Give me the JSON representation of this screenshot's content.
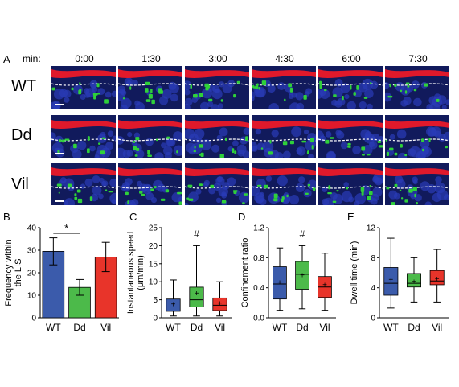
{
  "panel_a": {
    "letter": "A",
    "time_prefix": "min:",
    "times": [
      "0:00",
      "1:30",
      "3:00",
      "4:30",
      "6:00",
      "7:30"
    ],
    "rows": [
      "WT",
      "Dd",
      "Vil"
    ]
  },
  "chart_data": [
    {
      "panel": "B",
      "type": "bar",
      "ylabel": [
        "Frequency within",
        "the LIS"
      ],
      "categories": [
        "WT",
        "Dd",
        "Vil"
      ],
      "values": [
        29.5,
        13.5,
        27
      ],
      "errors": [
        6,
        3.5,
        6.5
      ],
      "colors": [
        "#3b5bab",
        "#4cba4a",
        "#e8342a"
      ],
      "ylim": [
        0,
        40
      ],
      "yticks": [
        0,
        10,
        20,
        30,
        40
      ],
      "significance": "*"
    },
    {
      "panel": "C",
      "type": "box",
      "ylabel": [
        "Instantaneous speed",
        "(μm/min)"
      ],
      "categories": [
        "WT",
        "Dd",
        "Vil"
      ],
      "colors": [
        "#3b5bab",
        "#4cba4a",
        "#e8342a"
      ],
      "boxes": [
        {
          "min": 0.5,
          "q1": 1.8,
          "median": 3.0,
          "q3": 5.2,
          "max": 10.5,
          "mean": 3.8
        },
        {
          "min": 0.5,
          "q1": 3.0,
          "median": 5.0,
          "q3": 8.5,
          "max": 20.0,
          "mean": 6.8
        },
        {
          "min": 0.5,
          "q1": 2.0,
          "median": 3.5,
          "q3": 5.5,
          "max": 10.0,
          "mean": 4.0
        }
      ],
      "ylim": [
        0,
        25
      ],
      "yticks": [
        0,
        5,
        10,
        15,
        20,
        25
      ],
      "significance": "#"
    },
    {
      "panel": "D",
      "type": "box",
      "ylabel": [
        "Confinement ratio"
      ],
      "categories": [
        "WT",
        "Dd",
        "Vil"
      ],
      "colors": [
        "#3b5bab",
        "#4cba4a",
        "#e8342a"
      ],
      "boxes": [
        {
          "min": 0.1,
          "q1": 0.25,
          "median": 0.45,
          "q3": 0.68,
          "max": 0.93,
          "mean": 0.47
        },
        {
          "min": 0.12,
          "q1": 0.38,
          "median": 0.58,
          "q3": 0.75,
          "max": 0.96,
          "mean": 0.57
        },
        {
          "min": 0.1,
          "q1": 0.27,
          "median": 0.41,
          "q3": 0.55,
          "max": 0.86,
          "mean": 0.44
        }
      ],
      "ylim": [
        0,
        1.2
      ],
      "yticks": [
        0.0,
        0.4,
        0.8,
        1.2
      ],
      "ytick_labels": [
        "0.0",
        "0.4",
        "0.8",
        "1.2"
      ],
      "significance": "#"
    },
    {
      "panel": "E",
      "type": "box",
      "ylabel": [
        "Dwell time (min)"
      ],
      "categories": [
        "WT",
        "Dd",
        "Vil"
      ],
      "colors": [
        "#3b5bab",
        "#4cba4a",
        "#e8342a"
      ],
      "boxes": [
        {
          "min": 1.3,
          "q1": 3.0,
          "median": 4.6,
          "q3": 6.7,
          "max": 10.6,
          "mean": 5.1
        },
        {
          "min": 2.1,
          "q1": 4.1,
          "median": 4.6,
          "q3": 5.9,
          "max": 8.0,
          "mean": 4.8
        },
        {
          "min": 2.1,
          "q1": 4.4,
          "median": 4.9,
          "q3": 6.3,
          "max": 9.1,
          "mean": 5.2
        }
      ],
      "ylim": [
        0,
        12
      ],
      "yticks": [
        0,
        4,
        8,
        12
      ],
      "significance": ""
    }
  ]
}
